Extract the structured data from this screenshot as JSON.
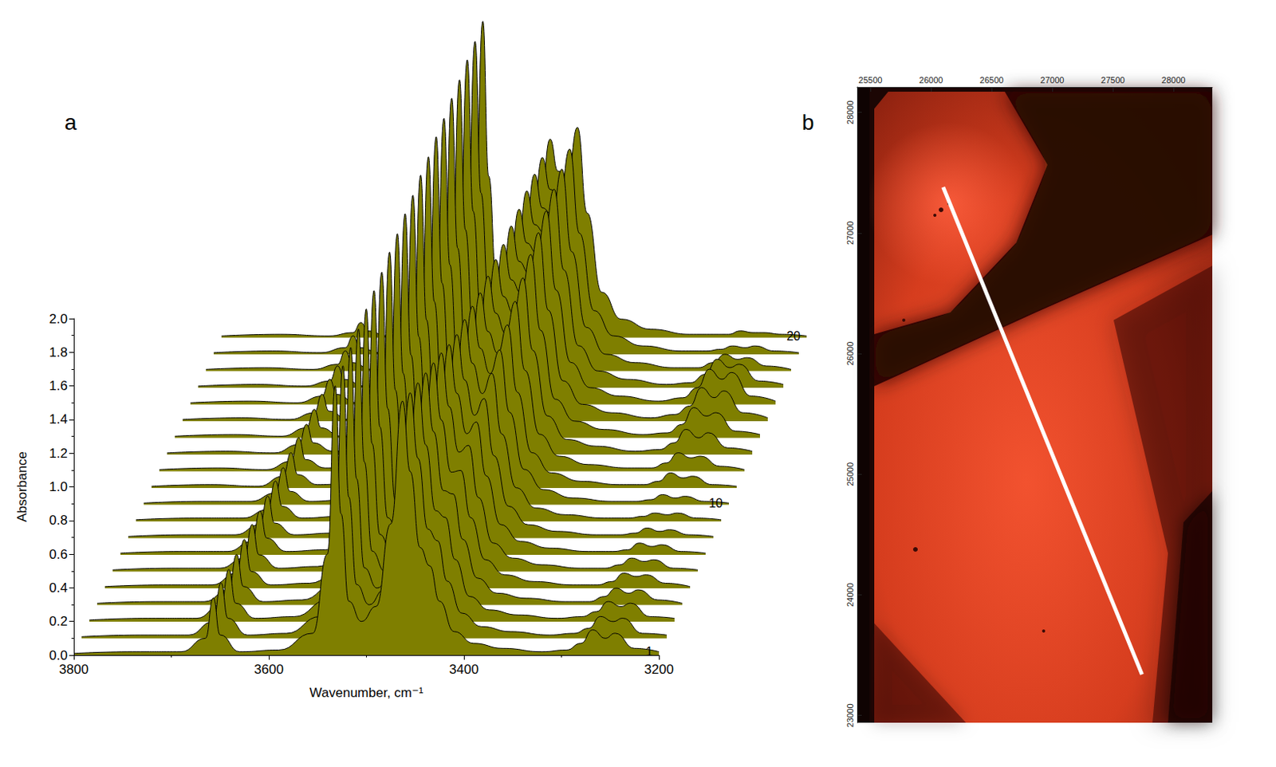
{
  "chart_data": [
    {
      "type": "line",
      "panel": "a",
      "x_label": "Wavenumber, cm⁻¹",
      "y_label": "Absorbance",
      "xlim": [
        3800,
        3200
      ],
      "xticks": [
        3800,
        3600,
        3400,
        3200
      ],
      "ylim": [
        0,
        2.0
      ],
      "yticks": [
        {
          "value": 0,
          "label": "0.0"
        },
        {
          "value": 0.2,
          "label": "0.2"
        },
        {
          "value": 0.4,
          "label": "0.4"
        },
        {
          "value": 0.6,
          "label": "0.6"
        },
        {
          "value": 0.8,
          "label": "0.8"
        },
        {
          "value": 1.0,
          "label": "1.0"
        },
        {
          "value": 1.2,
          "label": "1.2"
        },
        {
          "value": 1.4,
          "label": "1.4"
        },
        {
          "value": 1.6,
          "label": "1.6"
        },
        {
          "value": 1.8,
          "label": "1.8"
        },
        {
          "value": 2.0,
          "label": "2.0"
        }
      ],
      "grid": false,
      "color": "#7f7f00",
      "x": [
        3800,
        3740,
        3690,
        3665,
        3657,
        3650,
        3630,
        3590,
        3555,
        3540,
        3532,
        3526,
        3518,
        3505,
        3490,
        3475,
        3463,
        3455,
        3445,
        3435,
        3425,
        3410,
        3390,
        3360,
        3320,
        3295,
        3280,
        3268,
        3255,
        3245,
        3225,
        3200
      ],
      "series": [
        {
          "name": "1",
          "values": [
            0.01,
            0.02,
            0.02,
            0.1,
            0.34,
            0.12,
            0.02,
            0.03,
            0.13,
            0.6,
            1.6,
            0.84,
            0.32,
            0.2,
            0.29,
            0.78,
            1.51,
            1.09,
            0.64,
            0.53,
            0.32,
            0.14,
            0.07,
            0.04,
            0.02,
            0.03,
            0.07,
            0.15,
            0.1,
            0.13,
            0.04,
            0.02
          ]
        },
        {
          "values": [
            0.01,
            0.02,
            0.02,
            0.1,
            0.33,
            0.12,
            0.02,
            0.03,
            0.13,
            0.61,
            1.62,
            0.84,
            0.32,
            0.2,
            0.29,
            0.75,
            1.46,
            1.07,
            0.65,
            0.58,
            0.34,
            0.15,
            0.07,
            0.04,
            0.02,
            0.03,
            0.06,
            0.13,
            0.1,
            0.12,
            0.03,
            0.02
          ]
        },
        {
          "values": [
            0.01,
            0.02,
            0.02,
            0.1,
            0.31,
            0.11,
            0.02,
            0.03,
            0.13,
            0.61,
            1.63,
            0.85,
            0.32,
            0.2,
            0.28,
            0.73,
            1.42,
            1.05,
            0.66,
            0.62,
            0.37,
            0.15,
            0.07,
            0.04,
            0.02,
            0.03,
            0.06,
            0.12,
            0.09,
            0.11,
            0.03,
            0.02
          ]
        },
        {
          "values": [
            0.01,
            0.02,
            0.02,
            0.09,
            0.3,
            0.11,
            0.02,
            0.03,
            0.13,
            0.62,
            1.64,
            0.85,
            0.32,
            0.2,
            0.28,
            0.71,
            1.38,
            1.03,
            0.68,
            0.66,
            0.39,
            0.16,
            0.07,
            0.04,
            0.02,
            0.02,
            0.05,
            0.1,
            0.07,
            0.09,
            0.03,
            0.01
          ]
        },
        {
          "values": [
            0.01,
            0.02,
            0.02,
            0.09,
            0.29,
            0.1,
            0.02,
            0.03,
            0.13,
            0.62,
            1.66,
            0.86,
            0.32,
            0.19,
            0.27,
            0.69,
            1.34,
            1.0,
            0.69,
            0.7,
            0.42,
            0.17,
            0.08,
            0.04,
            0.02,
            0.02,
            0.04,
            0.09,
            0.07,
            0.08,
            0.03,
            0.01
          ]
        },
        {
          "values": [
            0.01,
            0.02,
            0.02,
            0.08,
            0.28,
            0.1,
            0.02,
            0.03,
            0.13,
            0.62,
            1.67,
            0.86,
            0.32,
            0.19,
            0.27,
            0.67,
            1.3,
            0.98,
            0.71,
            0.75,
            0.44,
            0.17,
            0.08,
            0.04,
            0.02,
            0.02,
            0.04,
            0.08,
            0.06,
            0.07,
            0.02,
            0.01
          ]
        },
        {
          "values": [
            0.01,
            0.02,
            0.02,
            0.08,
            0.26,
            0.1,
            0.02,
            0.03,
            0.13,
            0.63,
            1.68,
            0.87,
            0.32,
            0.19,
            0.26,
            0.65,
            1.25,
            0.96,
            0.72,
            0.79,
            0.47,
            0.18,
            0.08,
            0.04,
            0.02,
            0.02,
            0.03,
            0.07,
            0.05,
            0.06,
            0.02,
            0.01
          ]
        },
        {
          "values": [
            0.01,
            0.02,
            0.02,
            0.08,
            0.25,
            0.09,
            0.02,
            0.03,
            0.13,
            0.63,
            1.7,
            0.88,
            0.32,
            0.19,
            0.25,
            0.63,
            1.21,
            0.94,
            0.73,
            0.83,
            0.49,
            0.19,
            0.08,
            0.04,
            0.02,
            0.02,
            0.03,
            0.06,
            0.04,
            0.05,
            0.02,
            0.01
          ]
        },
        {
          "values": [
            0.01,
            0.02,
            0.02,
            0.07,
            0.24,
            0.09,
            0.02,
            0.03,
            0.14,
            0.64,
            1.71,
            0.88,
            0.32,
            0.19,
            0.25,
            0.62,
            1.2,
            0.94,
            0.76,
            0.88,
            0.52,
            0.2,
            0.08,
            0.04,
            0.02,
            0.02,
            0.03,
            0.05,
            0.04,
            0.05,
            0.02,
            0.01
          ]
        },
        {
          "name": "10",
          "values": [
            0.01,
            0.02,
            0.02,
            0.07,
            0.22,
            0.08,
            0.02,
            0.03,
            0.14,
            0.64,
            1.73,
            0.89,
            0.32,
            0.19,
            0.25,
            0.61,
            1.18,
            0.93,
            0.78,
            0.92,
            0.55,
            0.21,
            0.09,
            0.04,
            0.02,
            0.02,
            0.03,
            0.06,
            0.04,
            0.05,
            0.02,
            0.01
          ]
        },
        {
          "values": [
            0.01,
            0.02,
            0.01,
            0.07,
            0.21,
            0.08,
            0.02,
            0.03,
            0.14,
            0.65,
            1.74,
            0.9,
            0.32,
            0.19,
            0.25,
            0.61,
            1.16,
            0.93,
            0.8,
            0.97,
            0.57,
            0.21,
            0.09,
            0.04,
            0.02,
            0.02,
            0.04,
            0.09,
            0.06,
            0.07,
            0.02,
            0.01
          ]
        },
        {
          "values": [
            0.01,
            0.02,
            0.01,
            0.06,
            0.2,
            0.07,
            0.02,
            0.03,
            0.14,
            0.65,
            1.76,
            0.9,
            0.32,
            0.19,
            0.25,
            0.61,
            1.16,
            0.94,
            0.82,
            1.01,
            0.6,
            0.22,
            0.09,
            0.04,
            0.02,
            0.02,
            0.05,
            0.11,
            0.08,
            0.09,
            0.03,
            0.01
          ]
        },
        {
          "values": [
            0.01,
            0.02,
            0.01,
            0.06,
            0.18,
            0.07,
            0.02,
            0.03,
            0.14,
            0.66,
            1.77,
            0.91,
            0.32,
            0.19,
            0.25,
            0.61,
            1.16,
            0.94,
            0.84,
            1.05,
            0.62,
            0.23,
            0.09,
            0.05,
            0.02,
            0.03,
            0.07,
            0.15,
            0.1,
            0.13,
            0.04,
            0.02
          ]
        },
        {
          "values": [
            0.01,
            0.02,
            0.01,
            0.06,
            0.17,
            0.06,
            0.01,
            0.03,
            0.14,
            0.66,
            1.79,
            0.92,
            0.33,
            0.19,
            0.25,
            0.6,
            1.15,
            0.94,
            0.86,
            1.09,
            0.64,
            0.23,
            0.1,
            0.05,
            0.02,
            0.03,
            0.08,
            0.18,
            0.13,
            0.15,
            0.04,
            0.02
          ]
        },
        {
          "values": [
            0.01,
            0.02,
            0.01,
            0.05,
            0.16,
            0.06,
            0.01,
            0.03,
            0.14,
            0.67,
            1.8,
            0.93,
            0.33,
            0.2,
            0.25,
            0.61,
            1.16,
            0.95,
            0.88,
            1.12,
            0.66,
            0.24,
            0.1,
            0.05,
            0.02,
            0.04,
            0.09,
            0.2,
            0.14,
            0.18,
            0.05,
            0.02
          ]
        },
        {
          "values": [
            0.01,
            0.02,
            0.01,
            0.05,
            0.15,
            0.06,
            0.01,
            0.03,
            0.14,
            0.67,
            1.82,
            0.93,
            0.33,
            0.2,
            0.25,
            0.61,
            1.16,
            0.96,
            0.9,
            1.15,
            0.68,
            0.25,
            0.1,
            0.05,
            0.02,
            0.04,
            0.1,
            0.21,
            0.15,
            0.19,
            0.05,
            0.02
          ]
        },
        {
          "values": [
            0.01,
            0.02,
            0.01,
            0.04,
            0.13,
            0.05,
            0.01,
            0.03,
            0.14,
            0.68,
            1.83,
            0.94,
            0.33,
            0.2,
            0.26,
            0.61,
            1.17,
            0.97,
            0.92,
            1.18,
            0.7,
            0.25,
            0.1,
            0.05,
            0.02,
            0.03,
            0.08,
            0.17,
            0.12,
            0.14,
            0.04,
            0.02
          ]
        },
        {
          "values": [
            0.01,
            0.02,
            0.01,
            0.04,
            0.12,
            0.05,
            0.01,
            0.03,
            0.14,
            0.68,
            1.85,
            0.95,
            0.33,
            0.2,
            0.26,
            0.61,
            1.17,
            0.97,
            0.93,
            1.2,
            0.71,
            0.26,
            0.1,
            0.05,
            0.02,
            0.02,
            0.05,
            0.1,
            0.07,
            0.08,
            0.03,
            0.01
          ]
        },
        {
          "values": [
            0.01,
            0.02,
            0.01,
            0.04,
            0.11,
            0.04,
            0.01,
            0.03,
            0.14,
            0.69,
            1.86,
            0.96,
            0.34,
            0.2,
            0.26,
            0.62,
            1.17,
            0.98,
            0.94,
            1.22,
            0.72,
            0.26,
            0.11,
            0.05,
            0.02,
            0.02,
            0.03,
            0.05,
            0.04,
            0.05,
            0.02,
            0.01
          ]
        },
        {
          "name": "20",
          "values": [
            0.01,
            0.02,
            0.01,
            0.03,
            0.09,
            0.04,
            0.01,
            0.03,
            0.14,
            0.69,
            1.88,
            0.96,
            0.34,
            0.2,
            0.26,
            0.62,
            1.18,
            0.99,
            0.96,
            1.25,
            0.74,
            0.27,
            0.11,
            0.05,
            0.02,
            0.02,
            0.02,
            0.04,
            0.03,
            0.03,
            0.02,
            0.01
          ]
        }
      ]
    },
    {
      "type": "image",
      "panel": "b",
      "xlim": [
        25390,
        28320
      ],
      "xticks": [
        25500,
        26000,
        26500,
        27000,
        27500,
        28000
      ],
      "ylim": [
        22940,
        28210
      ],
      "yticks": [
        23000,
        24000,
        25000,
        26000,
        27000,
        28000
      ],
      "grid": false,
      "line": {
        "x": [
          26100,
          27740
        ],
        "y": [
          27380,
          23340
        ],
        "color": "#ffffff"
      }
    }
  ]
}
